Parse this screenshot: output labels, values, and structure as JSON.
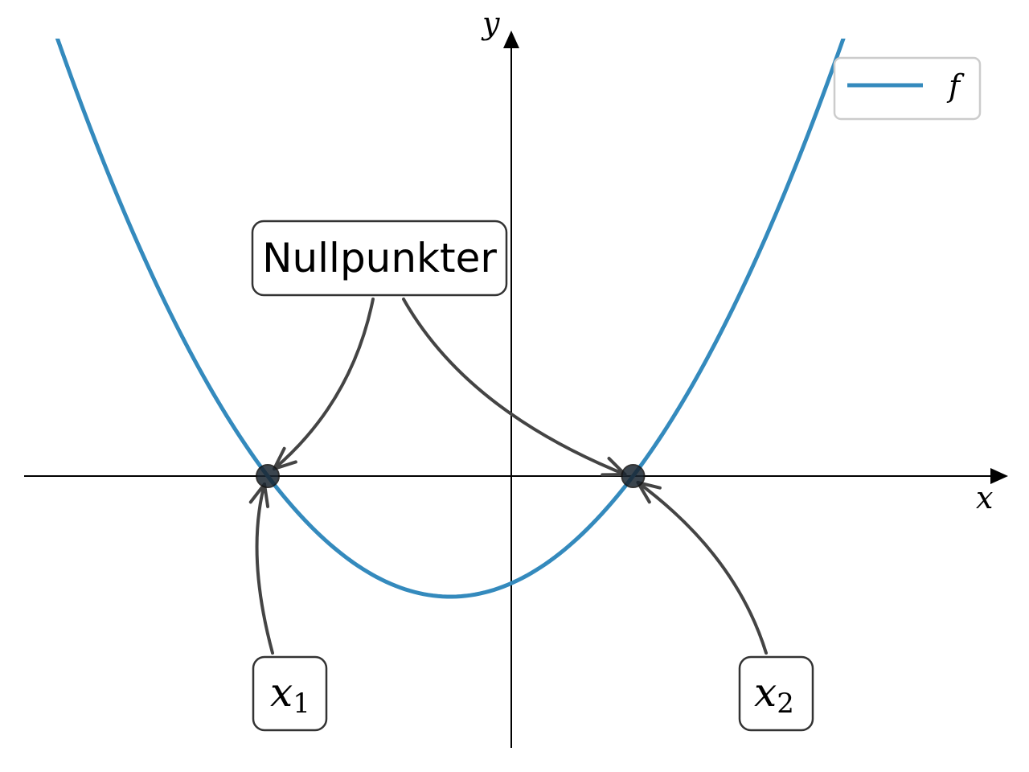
{
  "chart_data": {
    "type": "line",
    "title": "",
    "xlabel": "x",
    "ylabel": "y",
    "xlim": [
      -5,
      5
    ],
    "ylim": [
      -2.7,
      4.8
    ],
    "grid": false,
    "ticks": false,
    "legend": {
      "placement": "top-right",
      "entries": [
        "f"
      ]
    },
    "series": [
      {
        "name": "f",
        "function": "quadratic",
        "roots": [
          -2,
          1
        ],
        "vertex": [
          -0.5,
          -1.2
        ],
        "domain": [
          -4.3,
          3.4
        ],
        "color": "#348ABD"
      }
    ],
    "points": [
      {
        "x": -2,
        "y": 0,
        "label_main": "x",
        "label_sub": "1"
      },
      {
        "x": 1,
        "y": 0,
        "label_main": "x",
        "label_sub": "2"
      }
    ],
    "annotations": [
      {
        "text": "Nullpunkter",
        "target_points": [
          0,
          1
        ]
      }
    ],
    "colors": {
      "curve": "#348ABD",
      "arrow": "#444444",
      "point": "#1a2530"
    }
  }
}
